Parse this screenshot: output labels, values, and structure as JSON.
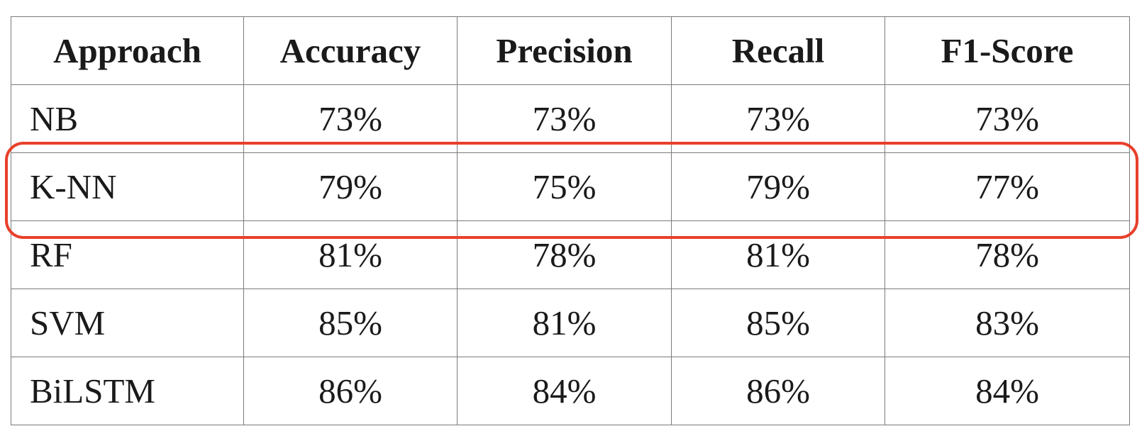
{
  "chart_data": {
    "type": "table",
    "columns": [
      "Approach",
      "Accuracy",
      "Precision",
      "Recall",
      "F1-Score"
    ],
    "rows": [
      [
        "NB",
        "73%",
        "73%",
        "73%",
        "73%"
      ],
      [
        "K-NN",
        "79%",
        "75%",
        "79%",
        "77%"
      ],
      [
        "RF",
        "81%",
        "78%",
        "81%",
        "78%"
      ],
      [
        "SVM",
        "85%",
        "81%",
        "85%",
        "83%"
      ],
      [
        "BiLSTM",
        "86%",
        "84%",
        "86%",
        "84%"
      ]
    ],
    "highlighted_row": "K-NN",
    "highlight_color": "#e8402a",
    "grid_color": "#7a7a7a"
  }
}
